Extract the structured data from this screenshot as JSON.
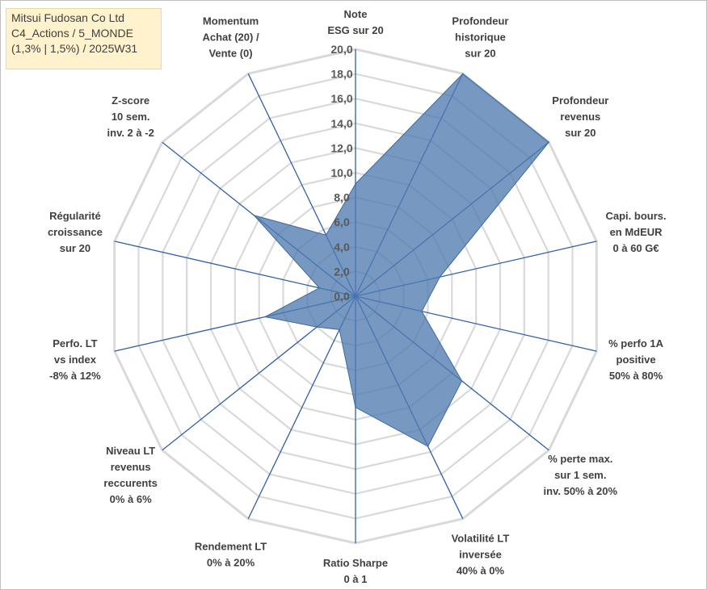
{
  "title_box": {
    "lines": [
      "Mitsui Fudosan Co Ltd",
      "C4_Actions / 5_MONDE",
      "(1,3% | 1,5%) / 2025W31"
    ]
  },
  "chart_data": {
    "type": "radar",
    "rlim": [
      0,
      20
    ],
    "tick_step": 2,
    "tick_labels": [
      "0,0",
      "2,0",
      "4,0",
      "6,0",
      "8,0",
      "10,0",
      "12,0",
      "14,0",
      "16,0",
      "18,0",
      "20,0"
    ],
    "grid": true,
    "fill_color": "#4f7bb0",
    "grid_color": "#d9d9d9",
    "axis_color": "#2e5fa8",
    "axes": [
      {
        "label": [
          "Note",
          "ESG sur 20"
        ],
        "value": 9.1
      },
      {
        "label": [
          "Profondeur",
          "historique",
          "sur 20"
        ],
        "value": 20.0
      },
      {
        "label": [
          "Profondeur",
          "revenus",
          "sur 20"
        ],
        "value": 20.0
      },
      {
        "label": [
          "Capi. bours.",
          "en MdEUR",
          "0 à 60 G€"
        ],
        "value": 7.0
      },
      {
        "label": [
          "% perfo 1A",
          "positive",
          "50% à 80%"
        ],
        "value": 5.5
      },
      {
        "label": [
          "% perte max.",
          "sur 1 sem.",
          "inv. 50% à 20%"
        ],
        "value": 11.0
      },
      {
        "label": [
          "Volatilité LT",
          "inversée",
          "40% à 0%"
        ],
        "value": 13.5
      },
      {
        "label": [
          "Ratio Sharpe",
          "0 à 1"
        ],
        "value": 9.0
      },
      {
        "label": [
          "Rendement LT",
          "0% à 20%"
        ],
        "value": 3.0
      },
      {
        "label": [
          "Niveau LT",
          "revenus",
          "reccurents",
          "0% à 6%"
        ],
        "value": 4.0
      },
      {
        "label": [
          "Perfo. LT",
          "vs index",
          "-8% à 12%"
        ],
        "value": 7.5
      },
      {
        "label": [
          "Régularité",
          "croissance",
          "sur 20"
        ],
        "value": 3.0
      },
      {
        "label": [
          "Z-score",
          "10 sem.",
          "inv. 2 à -2"
        ],
        "value": 10.5
      },
      {
        "label": [
          "Momentum",
          "Achat (20) /",
          "Vente (0)"
        ],
        "value": 5.5
      }
    ]
  }
}
